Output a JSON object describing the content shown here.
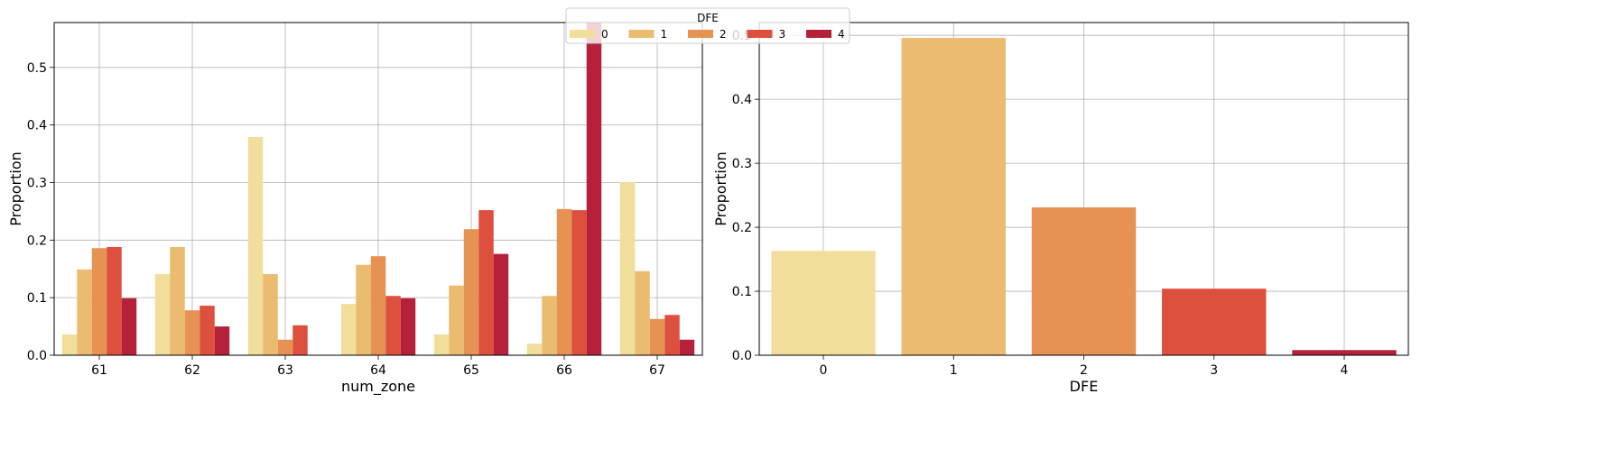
{
  "chart_data": [
    {
      "type": "bar",
      "xlabel": "num_zone",
      "ylabel": "Proportion",
      "ylim": [
        0,
        0.578
      ],
      "yticks": [
        "0.0",
        "0.1",
        "0.2",
        "0.3",
        "0.4",
        "0.5"
      ],
      "grid": true,
      "categories": [
        "61",
        "62",
        "63",
        "64",
        "65",
        "66",
        "67"
      ],
      "legend": {
        "title": "DFE",
        "placement": "top-center",
        "entries": [
          "0",
          "1",
          "2",
          "3",
          "4"
        ]
      },
      "series": [
        {
          "name": "0",
          "color": "#f1de9b",
          "values": [
            0.036,
            0.141,
            0.379,
            0.089,
            0.036,
            0.02,
            0.301
          ]
        },
        {
          "name": "1",
          "color": "#ebbb6f",
          "values": [
            0.149,
            0.188,
            0.141,
            0.157,
            0.121,
            0.103,
            0.146
          ]
        },
        {
          "name": "2",
          "color": "#e69253",
          "values": [
            0.186,
            0.078,
            0.027,
            0.172,
            0.219,
            0.254,
            0.063
          ]
        },
        {
          "name": "3",
          "color": "#dd503e",
          "values": [
            0.188,
            0.086,
            0.052,
            0.103,
            0.252,
            0.252,
            0.07
          ]
        },
        {
          "name": "4",
          "color": "#b5213a",
          "values": [
            0.099,
            0.05,
            0.0,
            0.099,
            0.176,
            0.58,
            0.027
          ]
        }
      ]
    },
    {
      "type": "bar",
      "xlabel": "DFE",
      "ylabel": "Proportion",
      "ylim": [
        0,
        0.52
      ],
      "yticks": [
        "0.0",
        "0.1",
        "0.2",
        "0.3",
        "0.4",
        "0.5"
      ],
      "grid": true,
      "categories": [
        "0",
        "1",
        "2",
        "3",
        "4"
      ],
      "values": [
        0.163,
        0.496,
        0.231,
        0.104,
        0.008
      ],
      "colors": [
        "#f1de9b",
        "#ebbb6f",
        "#e69253",
        "#dd503e",
        "#b5213a"
      ]
    }
  ]
}
